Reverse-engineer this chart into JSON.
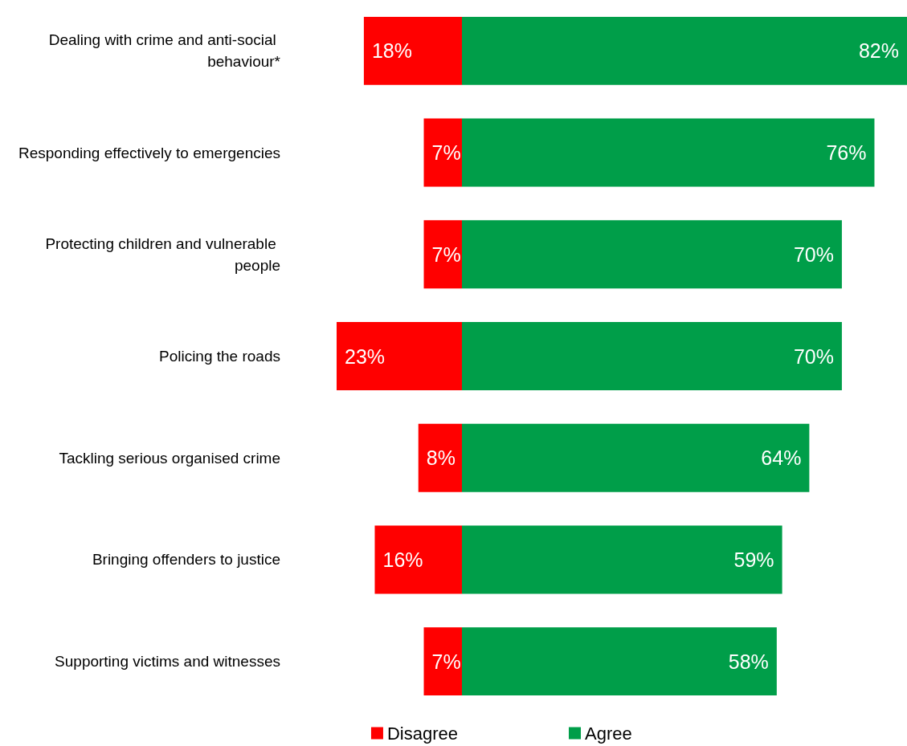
{
  "chart_data": [
    {
      "type": "bar",
      "orientation": "horizontal",
      "legend": "bottom right",
      "tick_labels": "y",
      "categories": [
        "Dealing with crime and anti-social behaviour*",
        "Responding effectively to emergencies",
        "Protecting children and vulnerable people",
        "Policing the roads",
        "Tackling serious organised crime",
        "Bringing offenders to justice",
        "Supporting victims and witnesses"
      ],
      "xlim": [
        23,
        0
      ],
      "series": [
        {
          "name": "Disagree",
          "color": "#ff0000",
          "values": [
            18,
            7,
            7,
            23,
            8,
            16,
            7
          ],
          "value_labels": [
            "18%",
            "7%",
            "7%",
            "23%",
            "8%",
            "16%",
            "7%"
          ]
        }
      ]
    },
    {
      "type": "bar",
      "orientation": "horizontal",
      "legend": "bottom left",
      "tick_labels": false,
      "categories": [
        null,
        null,
        null,
        null,
        null,
        null,
        null
      ],
      "xlim": [
        0,
        82
      ],
      "series": [
        {
          "name": "Agree",
          "color": "#009e49",
          "values": [
            82,
            76,
            70,
            70,
            64,
            59,
            58
          ],
          "value_labels": [
            "82%",
            "76%",
            "70%",
            "70%",
            "64%",
            "59%",
            "58%"
          ]
        }
      ]
    }
  ]
}
